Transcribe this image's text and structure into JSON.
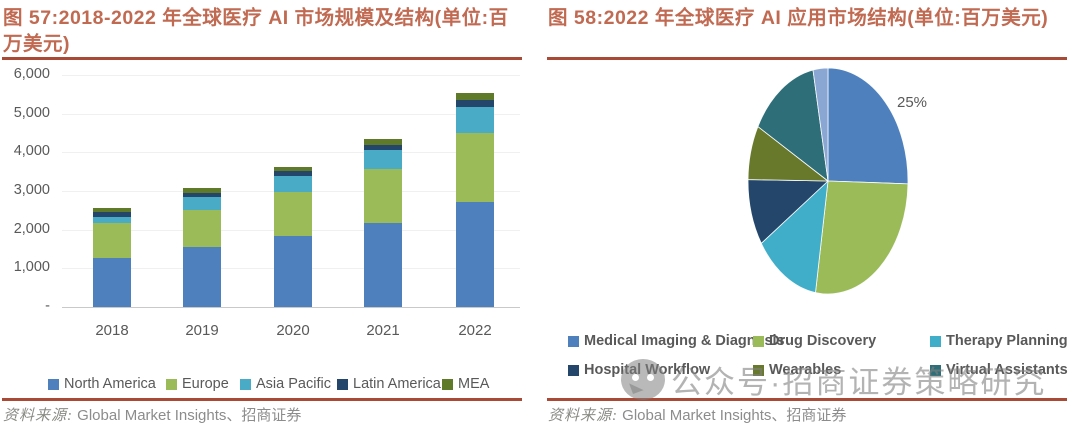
{
  "colors": {
    "title": "#c16a52",
    "rule": "#a84a36",
    "axis_text": "#595959",
    "source_text": "#8c8c8c",
    "north_america": "#4e80bd",
    "europe": "#9bbb59",
    "asia_pacific": "#4aabc7",
    "latin_america": "#24466b",
    "mea": "#5f7a28",
    "virtual_assistants": "#2d6e79",
    "unlabeled_sliver": "#8aa7d4"
  },
  "left_panel": {
    "title": "图 57:2018-2022 年全球医疗 AI 市场规模及结构(单位:百万美元)",
    "source_prefix": "资料来源:",
    "source_text": "Global Market Insights、招商证券"
  },
  "right_panel": {
    "title": "图 58:2022 年全球医疗 AI 应用市场结构(单位:百万美元)",
    "source_prefix": "资料来源:",
    "source_text": "Global Market Insights、招商证券"
  },
  "watermark": {
    "icon": "wechat-bubble-icon",
    "text": "公众号·招商证券策略研究"
  },
  "chart_data": [
    {
      "type": "bar",
      "stacked": true,
      "title": "2018-2022年全球医疗AI市场规模及结构(单位:百万美元)",
      "categories": [
        "2018",
        "2019",
        "2020",
        "2021",
        "2022"
      ],
      "series": [
        {
          "name": "North America",
          "color": "#4e80bd",
          "values": [
            1270,
            1550,
            1835,
            2180,
            2720
          ]
        },
        {
          "name": "Europe",
          "color": "#9bbb59",
          "values": [
            890,
            960,
            1145,
            1400,
            1780
          ]
        },
        {
          "name": "Asia Pacific",
          "color": "#4aabc7",
          "values": [
            170,
            340,
            410,
            470,
            670
          ]
        },
        {
          "name": "Latin America",
          "color": "#24466b",
          "values": [
            115,
            110,
            120,
            150,
            180
          ]
        },
        {
          "name": "MEA",
          "color": "#5f7a28",
          "values": [
            120,
            110,
            115,
            140,
            180
          ]
        }
      ],
      "totals": [
        2565,
        3070,
        3625,
        4340,
        5530
      ],
      "ylabel": "",
      "xlabel": "",
      "ylim": [
        0,
        6000
      ],
      "y_ticks": [
        "6,000",
        "5,000",
        "4,000",
        "3,000",
        "2,000",
        "1,000",
        "-"
      ],
      "grid": true,
      "legend_position": "bottom"
    },
    {
      "type": "pie",
      "title": "2022年全球医疗AI应用市场结构(单位:百万美元)",
      "start_angle": "12-oclock",
      "direction": "clockwise",
      "slices": [
        {
          "name": "Medical Imaging & Diagnosis",
          "color": "#4e80bd",
          "pct": 25.4,
          "data_label": "25%"
        },
        {
          "name": "Drug Discovery",
          "color": "#9bbb59",
          "pct": 27.1
        },
        {
          "name": "Therapy Planning",
          "color": "#41aec9",
          "pct": 13.2
        },
        {
          "name": "Hospital Workflow",
          "color": "#24466b",
          "pct": 9.5
        },
        {
          "name": "Wearables",
          "color": "#68792b",
          "pct": 7.8
        },
        {
          "name": "Virtual Assistants",
          "color": "#2d6e79",
          "pct": 14.0
        },
        {
          "name": "",
          "color": "#8aa7d4",
          "pct": 3.0
        }
      ],
      "legend": [
        "Medical Imaging & Diagnosis",
        "Drug Discovery",
        "Therapy Planning",
        "Hospital Workflow",
        "Wearables",
        "Virtual Assistants"
      ],
      "legend_position": "bottom"
    }
  ]
}
